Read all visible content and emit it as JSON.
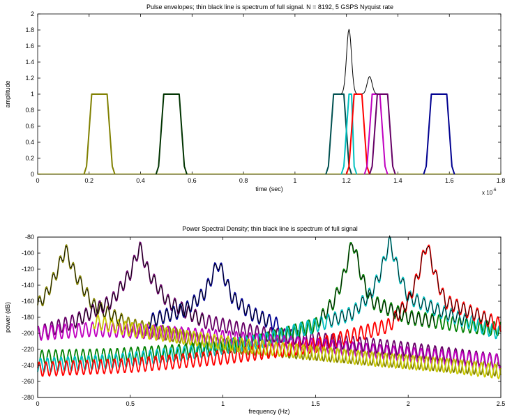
{
  "chart_data": [
    {
      "type": "line",
      "title": "Pulse envelopes; thin black line is spectrum of full signal. N = 8192, 5 GSPS Nyquist rate",
      "xlabel": "time (sec)",
      "ylabel": "amplitude",
      "x_exponent_label": "x 10",
      "x_exponent_power": "-6",
      "xlim": [
        0,
        1.8e-06
      ],
      "ylim": [
        0,
        2
      ],
      "xticks": [
        0,
        2e-07,
        4e-07,
        6e-07,
        8e-07,
        1e-06,
        1.2e-06,
        1.4e-06,
        1.6e-06,
        1.8e-06
      ],
      "xtick_labels": [
        "0",
        "0.2",
        "0.4",
        "0.6",
        "0.8",
        "1",
        "1.2",
        "1.4",
        "1.6",
        "1.8"
      ],
      "yticks": [
        0,
        0.2,
        0.4,
        0.6,
        0.8,
        1,
        1.2,
        1.4,
        1.6,
        1.8,
        2
      ],
      "ytick_labels": [
        "0",
        "0.2",
        "0.4",
        "0.6",
        "0.8",
        "1",
        "1.2",
        "1.4",
        "1.6",
        "1.8",
        "2"
      ],
      "grid": false,
      "pulses": [
        {
          "color": "#808000",
          "x": [
            1.8e-07,
            1.9e-07,
            2.1e-07,
            2.7e-07,
            2.9e-07,
            3e-07
          ],
          "y": [
            0,
            0.1,
            1,
            1,
            0.1,
            0
          ]
        },
        {
          "color": "#003300",
          "x": [
            4.6e-07,
            4.7e-07,
            4.9e-07,
            5.5e-07,
            5.7e-07,
            5.8e-07
          ],
          "y": [
            0,
            0.1,
            1,
            1,
            0.1,
            0
          ]
        },
        {
          "color": "#005050",
          "x": [
            1.12e-06,
            1.13e-06,
            1.15e-06,
            1.19e-06,
            1.21e-06,
            1.22e-06
          ],
          "y": [
            0,
            0.1,
            1,
            1,
            0.1,
            0
          ]
        },
        {
          "color": "#00c0c0",
          "x": [
            1.18e-06,
            1.19e-06,
            1.21e-06,
            1.22e-06,
            1.23e-06,
            1.24e-06
          ],
          "y": [
            0,
            0.1,
            1,
            1,
            0.1,
            0
          ]
        },
        {
          "color": "#ff0000",
          "x": [
            1.2e-06,
            1.21e-06,
            1.23e-06,
            1.26e-06,
            1.28e-06,
            1.29e-06
          ],
          "y": [
            0,
            0.1,
            1,
            1,
            0.1,
            0
          ]
        },
        {
          "color": "#c000c0",
          "x": [
            1.27e-06,
            1.28e-06,
            1.3e-06,
            1.33e-06,
            1.35e-06,
            1.36e-06
          ],
          "y": [
            0,
            0.1,
            1,
            1,
            0.1,
            0
          ]
        },
        {
          "color": "#660066",
          "x": [
            1.29e-06,
            1.3e-06,
            1.32e-06,
            1.36e-06,
            1.38e-06,
            1.39e-06
          ],
          "y": [
            0,
            0.1,
            1,
            1,
            0.1,
            0
          ]
        },
        {
          "color": "#000090",
          "x": [
            1.5e-06,
            1.51e-06,
            1.53e-06,
            1.59e-06,
            1.61e-06,
            1.62e-06
          ],
          "y": [
            0,
            0.1,
            1,
            1,
            0.1,
            0
          ]
        }
      ],
      "full_signal_peaks": [
        {
          "x": 1.21e-06,
          "y": 1.81
        },
        {
          "x": 1.29e-06,
          "y": 1.22
        }
      ]
    },
    {
      "type": "line",
      "title": "Power Spectral Density; thin black line is spectrum of full signal",
      "xlabel": "frequency (Hz)",
      "ylabel": "power (dB)",
      "xlim": [
        0,
        2.5
      ],
      "ylim": [
        -280,
        -80
      ],
      "xticks": [
        0,
        0.5,
        1,
        1.5,
        2,
        2.5
      ],
      "xtick_labels": [
        "0",
        "0.5",
        "1",
        "1.5",
        "2",
        "2.5"
      ],
      "yticks": [
        -280,
        -260,
        -240,
        -220,
        -200,
        -180,
        -160,
        -140,
        -120,
        -100,
        -80
      ],
      "ytick_labels": [
        "-280",
        "-260",
        "-240",
        "-220",
        "-200",
        "-180",
        "-160",
        "-140",
        "-120",
        "-100",
        "-80"
      ],
      "grid": false,
      "series": [
        {
          "color": "#808000",
          "x": [
            0,
            0.05,
            0.1,
            0.15,
            0.2,
            0.3,
            0.5,
            0.7,
            1.0,
            1.5,
            2.0,
            2.5
          ],
          "y": [
            -165,
            -150,
            -125,
            -95,
            -125,
            -165,
            -190,
            -200,
            -215,
            -225,
            -235,
            -245
          ]
        },
        {
          "color": "#660066",
          "x": [
            0,
            0.2,
            0.4,
            0.5,
            0.55,
            0.6,
            0.7,
            0.9,
            1.2,
            1.6,
            2.0,
            2.5
          ],
          "y": [
            -200,
            -185,
            -160,
            -125,
            -92,
            -125,
            -160,
            -185,
            -200,
            -210,
            -220,
            -235
          ]
        },
        {
          "color": "#000090",
          "x": [
            0.6,
            0.8,
            0.9,
            0.95,
            0.97,
            1.0,
            1.05,
            1.15,
            1.3
          ],
          "y": [
            -185,
            -170,
            -150,
            -125,
            -112,
            -125,
            -155,
            -175,
            -190
          ]
        },
        {
          "color": "#008000",
          "x": [
            0,
            0.4,
            0.8,
            1.2,
            1.5,
            1.6,
            1.65,
            1.7,
            1.75,
            1.8,
            2.0,
            2.3,
            2.5
          ],
          "y": [
            -230,
            -228,
            -222,
            -210,
            -190,
            -160,
            -130,
            -85,
            -130,
            -160,
            -180,
            -190,
            -195
          ]
        },
        {
          "color": "#00c0c0",
          "x": [
            0,
            0.4,
            0.8,
            1.2,
            1.5,
            1.7,
            1.8,
            1.85,
            1.9,
            1.95,
            2.0,
            2.2,
            2.5
          ],
          "y": [
            -240,
            -235,
            -225,
            -210,
            -190,
            -175,
            -150,
            -125,
            -85,
            -125,
            -155,
            -175,
            -200
          ]
        },
        {
          "color": "#ff0000",
          "x": [
            0,
            0.5,
            1.0,
            1.5,
            1.9,
            2.0,
            2.05,
            2.1,
            2.15,
            2.2,
            2.4,
            2.5
          ],
          "y": [
            -245,
            -240,
            -230,
            -215,
            -190,
            -160,
            -130,
            -88,
            -130,
            -160,
            -180,
            -190
          ]
        },
        {
          "color": "#c000c0",
          "x": [
            0,
            0.3,
            0.6,
            1.0,
            1.4,
            1.8,
            2.2,
            2.5
          ],
          "y": [
            -200,
            -195,
            -198,
            -205,
            -213,
            -222,
            -230,
            -235
          ]
        },
        {
          "color": "#c8c800",
          "x": [
            0.3,
            0.5,
            0.8,
            1.1,
            1.4,
            1.8,
            2.2,
            2.5
          ],
          "y": [
            -185,
            -195,
            -205,
            -215,
            -222,
            -232,
            -240,
            -248
          ]
        }
      ]
    }
  ]
}
